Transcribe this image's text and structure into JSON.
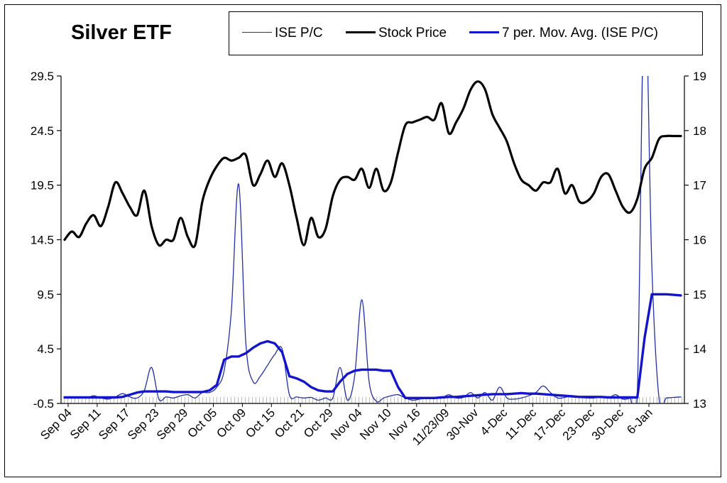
{
  "chart_data": {
    "type": "line",
    "title": "Silver ETF",
    "legend": {
      "position": "top-right",
      "items": [
        {
          "label": "ISE P/C",
          "color": "#2230a8",
          "style": "thin"
        },
        {
          "label": "Stock Price",
          "color": "#000000",
          "style": "thick"
        },
        {
          "label": "7 per. Mov. Avg. (ISE P/C)",
          "color": "#1414cc",
          "style": "thick"
        }
      ]
    },
    "y_left": {
      "ticks": [
        "29.5",
        "24.5",
        "19.5",
        "14.5",
        "9.5",
        "4.5",
        "-0.5"
      ],
      "range": [
        -0.5,
        29.5
      ]
    },
    "y_right": {
      "ticks": [
        "19",
        "18",
        "17",
        "16",
        "15",
        "14",
        "13"
      ],
      "range": [
        13,
        19
      ]
    },
    "x_tick_labels": [
      "Sep 04",
      "Sep 11",
      "Sep 17",
      "Sep 23",
      "Sep 29",
      "Oct 05",
      "Oct 09",
      "Oct 15",
      "Oct 21",
      "Oct 29",
      "Nov 04",
      "Nov 10",
      "Nov 16",
      "11/23/09",
      "30-Nov",
      "4-Dec",
      "11-Dec",
      "17-Dec",
      "23-Dec",
      "30-Dec",
      "6-Jan"
    ],
    "n_points": 86,
    "grid": false,
    "series": [
      {
        "name": "ISE P/C",
        "axis": "left",
        "values": [
          0.05,
          0.0,
          0.1,
          0.0,
          0.2,
          0.0,
          -0.1,
          0.1,
          0.4,
          0.1,
          0.0,
          0.7,
          2.8,
          -0.1,
          0.1,
          0.0,
          0.2,
          0.3,
          0.0,
          0.5,
          0.5,
          1.0,
          2.5,
          8.0,
          19.6,
          5.0,
          1.5,
          2.0,
          3.0,
          4.0,
          4.5,
          0.3,
          0.1,
          0.0,
          0.05,
          -0.2,
          0.0,
          0.0,
          2.8,
          -0.2,
          2.0,
          9.0,
          1.5,
          -0.3,
          0.0,
          0.2,
          0.3,
          0.0,
          -0.2,
          -0.1,
          0.0,
          0.05,
          0.0,
          0.3,
          0.0,
          0.05,
          0.5,
          0.0,
          0.5,
          -0.2,
          1.0,
          0.0,
          -0.1,
          0.0,
          0.2,
          0.5,
          1.1,
          0.5,
          0.0,
          0.05,
          0.2,
          0.05,
          0.0,
          0.0,
          0.1,
          0.0,
          0.3,
          -0.1,
          0.0,
          0.5,
          38.0,
          12.0,
          -0.1,
          0.0,
          0.05,
          0.1
        ]
      },
      {
        "name": "Stock Price",
        "axis": "right",
        "values": [
          16.0,
          16.15,
          16.05,
          16.3,
          16.45,
          16.25,
          16.6,
          17.05,
          16.85,
          16.6,
          16.45,
          16.9,
          16.25,
          15.9,
          16.0,
          16.0,
          16.4,
          16.05,
          15.9,
          16.7,
          17.1,
          17.35,
          17.5,
          17.45,
          17.5,
          17.55,
          17.0,
          17.2,
          17.45,
          17.15,
          17.4,
          17.0,
          16.4,
          15.9,
          16.4,
          16.05,
          16.2,
          16.8,
          17.1,
          17.15,
          17.1,
          17.3,
          16.95,
          17.3,
          16.9,
          17.05,
          17.6,
          18.1,
          18.15,
          18.2,
          18.25,
          18.2,
          18.5,
          17.95,
          18.15,
          18.4,
          18.75,
          18.9,
          18.75,
          18.3,
          18.05,
          17.8,
          17.4,
          17.1,
          17.0,
          16.9,
          17.05,
          17.05,
          17.3,
          16.85,
          17.0,
          16.7,
          16.7,
          16.85,
          17.15,
          17.2,
          16.9,
          16.6,
          16.5,
          16.75,
          17.3,
          17.5,
          17.85,
          17.9,
          17.9,
          17.9
        ]
      },
      {
        "name": "7 per. Mov. Avg. (ISE P/C)",
        "axis": "left",
        "values": [
          0.05,
          0.05,
          0.05,
          0.05,
          0.05,
          0.05,
          0.05,
          0.05,
          0.1,
          0.3,
          0.5,
          0.6,
          0.6,
          0.6,
          0.6,
          0.55,
          0.55,
          0.55,
          0.55,
          0.55,
          0.7,
          1.2,
          3.5,
          3.8,
          3.8,
          4.1,
          4.6,
          5.0,
          5.2,
          5.0,
          4.2,
          2.0,
          1.8,
          1.5,
          1.0,
          0.7,
          0.6,
          0.6,
          1.5,
          2.2,
          2.5,
          2.6,
          2.6,
          2.6,
          2.5,
          2.5,
          1.0,
          0.0,
          0.0,
          0.0,
          0.0,
          0.0,
          0.05,
          0.1,
          0.1,
          0.15,
          0.2,
          0.25,
          0.3,
          0.35,
          0.35,
          0.35,
          0.4,
          0.45,
          0.4,
          0.4,
          0.35,
          0.3,
          0.25,
          0.2,
          0.15,
          0.1,
          0.1,
          0.1,
          0.1,
          0.05,
          0.05,
          0.05,
          0.05,
          0.05,
          5.5,
          9.5,
          9.5,
          9.5,
          9.45,
          9.4
        ]
      }
    ]
  }
}
